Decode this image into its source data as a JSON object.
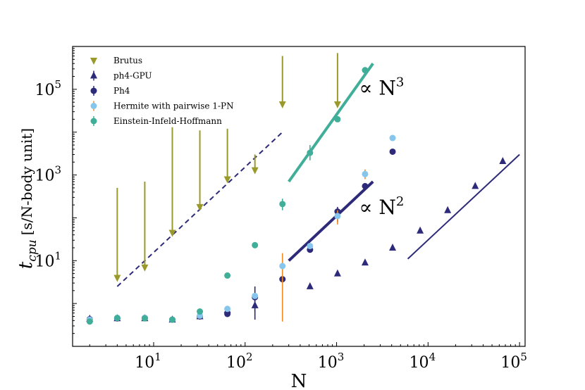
{
  "chart_data": {
    "type": "scatter",
    "title": "",
    "xlabel": "N",
    "ylabel": "t_cpu [s/N-body unit]",
    "ylabel_parts": {
      "symbol": "t",
      "subscript": "cpu",
      "unit": "[s/N-body unit]"
    },
    "xscale": "log",
    "yscale": "log",
    "xlim": [
      1.3,
      115000
    ],
    "ylim": [
      0.1,
      1000000
    ],
    "x_ticks": [
      {
        "value": 10,
        "base": "10",
        "exp": "1"
      },
      {
        "value": 100,
        "base": "10",
        "exp": "2"
      },
      {
        "value": 1000,
        "base": "10",
        "exp": "3"
      },
      {
        "value": 10000,
        "base": "10",
        "exp": "4"
      },
      {
        "value": 100000,
        "base": "10",
        "exp": "5"
      }
    ],
    "y_ticks": [
      {
        "value": 10,
        "base": "10",
        "exp": "1"
      },
      {
        "value": 1000,
        "base": "10",
        "exp": "3"
      },
      {
        "value": 100000,
        "base": "10",
        "exp": "5"
      }
    ],
    "legend_position": "top-left",
    "series": [
      {
        "name": "Brutus",
        "marker": "triangle-down",
        "color": "#9a9a2c",
        "x": [
          4,
          8,
          16,
          32,
          64,
          128,
          256,
          1024
        ],
        "y": [
          4,
          7,
          45,
          180,
          800,
          1300,
          45000,
          45000
        ],
        "arrow_top": [
          500,
          700,
          13000,
          11000,
          12000,
          3000,
          600000,
          700000
        ]
      },
      {
        "name": "ph4-GPU",
        "marker": "triangle-up",
        "color": "#2e2a7a",
        "x": [
          2,
          4,
          8,
          16,
          32,
          64,
          128,
          512,
          1024,
          2048,
          4096,
          8192,
          16384,
          32768,
          65536
        ],
        "y": [
          0.44,
          0.45,
          0.45,
          0.42,
          0.5,
          0.7,
          0.9,
          2.5,
          5,
          9,
          20,
          50,
          150,
          550,
          2100
        ],
        "err_lo": [
          null,
          null,
          null,
          null,
          null,
          null,
          0.42,
          null,
          null,
          null,
          null,
          null,
          null,
          null,
          null
        ],
        "err_hi": [
          null,
          null,
          null,
          null,
          null,
          null,
          1.2,
          null,
          null,
          null,
          null,
          null,
          null,
          null,
          null
        ]
      },
      {
        "name": "Ph4",
        "marker": "circle",
        "color": "#2e2a7a",
        "x": [
          2,
          4,
          8,
          16,
          32,
          64,
          128,
          256,
          512,
          1024,
          2048,
          4096
        ],
        "y": [
          0.43,
          0.45,
          0.46,
          0.42,
          0.5,
          0.57,
          1.4,
          3.7,
          18,
          140,
          550,
          3500
        ],
        "err_lo": [
          null,
          null,
          null,
          null,
          null,
          null,
          0.65,
          null,
          null,
          80,
          null,
          null
        ],
        "err_hi": [
          null,
          null,
          null,
          null,
          null,
          null,
          2.5,
          null,
          null,
          180,
          null,
          null
        ]
      },
      {
        "name": "Hermite with pairwise 1-PN",
        "marker": "circle",
        "color": "#87c6ec",
        "x": [
          2,
          4,
          8,
          16,
          32,
          64,
          128,
          256,
          512,
          1024,
          2048,
          4096
        ],
        "y": [
          0.42,
          0.46,
          0.46,
          0.42,
          0.52,
          0.75,
          1.5,
          7.5,
          22,
          110,
          1050,
          7300
        ],
        "err_lo": [
          null,
          null,
          null,
          null,
          null,
          null,
          null,
          0.38,
          null,
          70,
          800,
          null
        ],
        "err_hi": [
          null,
          null,
          null,
          null,
          null,
          null,
          null,
          15,
          null,
          150,
          1350,
          null
        ],
        "err_color": "#f08a24"
      },
      {
        "name": "Einstein-Infeld-Hoffmann",
        "marker": "circle",
        "color": "#40ae98",
        "x": [
          2,
          4,
          8,
          16,
          32,
          64,
          128,
          256,
          512,
          1024,
          2048
        ],
        "y": [
          0.38,
          0.46,
          0.45,
          0.42,
          0.65,
          4.5,
          23,
          210,
          3300,
          20000,
          280000
        ],
        "err_lo": [
          null,
          null,
          null,
          null,
          null,
          null,
          null,
          150,
          2200,
          null,
          null
        ],
        "err_hi": [
          null,
          null,
          null,
          null,
          null,
          null,
          null,
          280,
          5000,
          null,
          null
        ]
      }
    ],
    "fit_lines": [
      {
        "name": "dashed-N2",
        "style": "dashed",
        "color": "#2e2a7a",
        "width": 2,
        "x": [
          4,
          256
        ],
        "y": [
          2.5,
          10000
        ]
      },
      {
        "name": "EIH-N3",
        "style": "solid",
        "color": "#40ae98",
        "width": 4,
        "x": [
          300,
          2500
        ],
        "y": [
          700,
          400000
        ]
      },
      {
        "name": "Ph4-N2",
        "style": "solid",
        "color": "#2e2a7a",
        "width": 4,
        "x": [
          300,
          2500
        ],
        "y": [
          10,
          700
        ]
      },
      {
        "name": "GPU-N2",
        "style": "solid",
        "color": "#2e2a7a",
        "width": 2,
        "x": [
          6000,
          100000
        ],
        "y": [
          11,
          3000
        ]
      }
    ],
    "annotations": [
      {
        "name": "n3",
        "prefix": "∝ N",
        "exp": "3",
        "x": 1000,
        "y": 110000
      },
      {
        "name": "n2",
        "prefix": "∝ N",
        "exp": "2",
        "x": 1000,
        "y": 180
      }
    ]
  }
}
